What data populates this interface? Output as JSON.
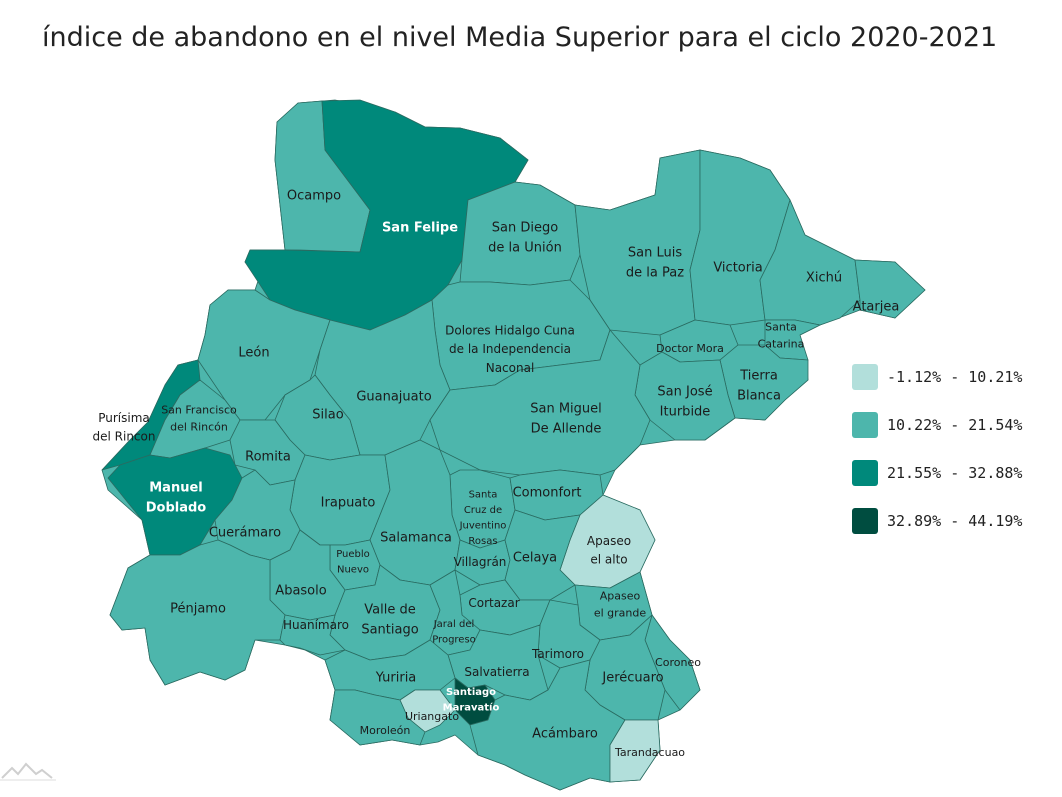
{
  "title": "índice de abandono en el nivel Media Superior para el ciclo 2020-2021",
  "colors": {
    "class1": "#b2dfdb",
    "class2": "#4db6ac",
    "class3": "#00897b",
    "class4": "#004d40",
    "border": "#2a6b61"
  },
  "legend": [
    {
      "label": "-1.12% - 10.21%",
      "color": "#b2dfdb"
    },
    {
      "label": "10.22% - 21.54%",
      "color": "#4db6ac"
    },
    {
      "label": "21.55% - 32.88%",
      "color": "#00897b"
    },
    {
      "label": "32.89% - 44.19%",
      "color": "#004d40"
    }
  ],
  "municipalities": [
    {
      "name": [
        "Ocampo"
      ],
      "class": 2
    },
    {
      "name": [
        "San Felipe"
      ],
      "class": 3
    },
    {
      "name": [
        "San Diego",
        "de la Unión"
      ],
      "class": 2
    },
    {
      "name": [
        "San Luis",
        "de la Paz"
      ],
      "class": 2
    },
    {
      "name": [
        "Victoria"
      ],
      "class": 2
    },
    {
      "name": [
        "Xichú"
      ],
      "class": 2
    },
    {
      "name": [
        "Atarjea"
      ],
      "class": 2
    },
    {
      "name": [
        "León"
      ],
      "class": 2
    },
    {
      "name": [
        "Dolores Hidalgo Cuna",
        "de la Independencia",
        "Naconal"
      ],
      "class": 2
    },
    {
      "name": [
        "Santa",
        "Catarina"
      ],
      "class": 2
    },
    {
      "name": [
        "Doctor Mora"
      ],
      "class": 2
    },
    {
      "name": [
        "Tierra",
        "Blanca"
      ],
      "class": 2
    },
    {
      "name": [
        "San José",
        "Iturbide"
      ],
      "class": 2
    },
    {
      "name": [
        "Guanajuato"
      ],
      "class": 2
    },
    {
      "name": [
        "Purísima",
        "del Rincon"
      ],
      "class": 3
    },
    {
      "name": [
        "San Francisco",
        "del Rincón"
      ],
      "class": 2
    },
    {
      "name": [
        "Silao"
      ],
      "class": 2
    },
    {
      "name": [
        "San Miguel",
        "De Allende"
      ],
      "class": 2
    },
    {
      "name": [
        "Romita"
      ],
      "class": 2
    },
    {
      "name": [
        "Manuel",
        "Doblado"
      ],
      "class": 3
    },
    {
      "name": [
        "Irapuato"
      ],
      "class": 2
    },
    {
      "name": [
        "Santa",
        "Cruz de",
        "Juventino",
        "Rosas"
      ],
      "class": 2
    },
    {
      "name": [
        "Comonfort"
      ],
      "class": 2
    },
    {
      "name": [
        "Cuerámaro"
      ],
      "class": 2
    },
    {
      "name": [
        "Salamanca"
      ],
      "class": 2
    },
    {
      "name": [
        "Apaseo",
        "el alto"
      ],
      "class": 1
    },
    {
      "name": [
        "Pueblo",
        "Nuevo"
      ],
      "class": 2
    },
    {
      "name": [
        "Villagrán"
      ],
      "class": 2
    },
    {
      "name": [
        "Celaya"
      ],
      "class": 2
    },
    {
      "name": [
        "Abasolo"
      ],
      "class": 2
    },
    {
      "name": [
        "Cortazar"
      ],
      "class": 2
    },
    {
      "name": [
        "Apaseo",
        "el grande"
      ],
      "class": 2
    },
    {
      "name": [
        "Valle de",
        "Santiago"
      ],
      "class": 2
    },
    {
      "name": [
        "Jaral del",
        "Progreso"
      ],
      "class": 2
    },
    {
      "name": [
        "Pénjamo"
      ],
      "class": 2
    },
    {
      "name": [
        "Huanímaro"
      ],
      "class": 2
    },
    {
      "name": [
        "Tarimoro"
      ],
      "class": 2
    },
    {
      "name": [
        "Coroneo"
      ],
      "class": 2
    },
    {
      "name": [
        "Salvatierra"
      ],
      "class": 2
    },
    {
      "name": [
        "Jerécuaro"
      ],
      "class": 2
    },
    {
      "name": [
        "Yuriria"
      ],
      "class": 2
    },
    {
      "name": [
        "Santiago",
        "Maravatío"
      ],
      "class": 4
    },
    {
      "name": [
        "Uriangato"
      ],
      "class": 1
    },
    {
      "name": [
        "Moroleón"
      ],
      "class": 2
    },
    {
      "name": [
        "Acámbaro"
      ],
      "class": 2
    },
    {
      "name": [
        "Tarandacuao"
      ],
      "class": 1
    }
  ]
}
